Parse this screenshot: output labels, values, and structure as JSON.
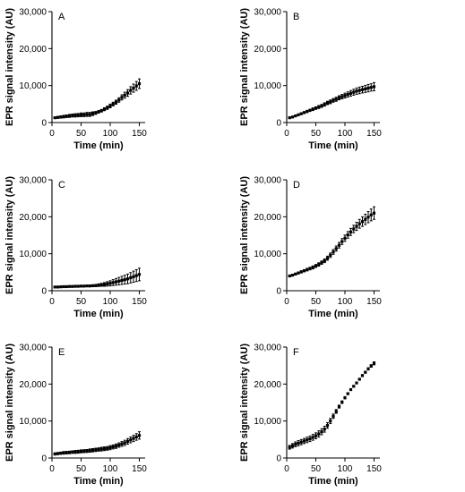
{
  "chart_data": [
    {
      "type": "scatter",
      "panel_label": "A",
      "xlabel": "Time (min)",
      "ylabel": "EPR signal intensity (AU)",
      "xlim": [
        0,
        160
      ],
      "ylim": [
        0,
        30000
      ],
      "xticks": [
        0,
        50,
        100,
        150
      ],
      "yticks": [
        0,
        10000,
        20000,
        30000
      ],
      "ytick_labels": [
        "0",
        "10,000",
        "20,000",
        "30,000"
      ],
      "x": [
        5,
        10,
        15,
        20,
        25,
        30,
        35,
        40,
        45,
        50,
        55,
        60,
        65,
        70,
        75,
        80,
        85,
        90,
        95,
        100,
        105,
        110,
        115,
        120,
        125,
        130,
        135,
        140,
        145,
        150
      ],
      "y": [
        1300,
        1400,
        1500,
        1600,
        1700,
        1800,
        1900,
        1950,
        2000,
        2100,
        2100,
        2200,
        2200,
        2400,
        2600,
        2900,
        3200,
        3600,
        4000,
        4500,
        5000,
        5500,
        6100,
        6800,
        7400,
        8000,
        8700,
        9300,
        9900,
        10500
      ],
      "error": [
        200,
        250,
        300,
        350,
        350,
        400,
        400,
        450,
        450,
        500,
        500,
        550,
        550,
        500,
        400,
        350,
        350,
        400,
        450,
        500,
        500,
        550,
        600,
        700,
        800,
        900,
        1000,
        1100,
        1200,
        1300
      ]
    },
    {
      "type": "scatter",
      "panel_label": "B",
      "xlabel": "Time (min)",
      "ylabel": "EPR signal intensity (AU)",
      "xlim": [
        0,
        160
      ],
      "ylim": [
        0,
        30000
      ],
      "xticks": [
        0,
        50,
        100,
        150
      ],
      "yticks": [
        0,
        10000,
        20000,
        30000
      ],
      "ytick_labels": [
        "0",
        "10,000",
        "20,000",
        "30,000"
      ],
      "x": [
        5,
        10,
        15,
        20,
        25,
        30,
        35,
        40,
        45,
        50,
        55,
        60,
        65,
        70,
        75,
        80,
        85,
        90,
        95,
        100,
        105,
        110,
        115,
        120,
        125,
        130,
        135,
        140,
        145,
        150
      ],
      "y": [
        1300,
        1500,
        1800,
        2100,
        2400,
        2700,
        3000,
        3300,
        3600,
        3900,
        4200,
        4500,
        4900,
        5300,
        5600,
        6000,
        6300,
        6700,
        7000,
        7300,
        7600,
        7900,
        8200,
        8500,
        8700,
        8900,
        9100,
        9300,
        9500,
        9700
      ],
      "error": [
        150,
        150,
        200,
        200,
        250,
        250,
        300,
        300,
        350,
        350,
        400,
        400,
        450,
        450,
        500,
        500,
        550,
        550,
        600,
        650,
        700,
        750,
        800,
        850,
        900,
        900,
        950,
        1000,
        1000,
        1100
      ]
    },
    {
      "type": "scatter",
      "panel_label": "C",
      "xlabel": "Time (min)",
      "ylabel": "EPR signal intensity (AU)",
      "xlim": [
        0,
        160
      ],
      "ylim": [
        0,
        30000
      ],
      "xticks": [
        0,
        50,
        100,
        150
      ],
      "yticks": [
        0,
        10000,
        20000,
        30000
      ],
      "ytick_labels": [
        "0",
        "10,000",
        "20,000",
        "30,000"
      ],
      "x": [
        5,
        10,
        15,
        20,
        25,
        30,
        35,
        40,
        45,
        50,
        55,
        60,
        65,
        70,
        75,
        80,
        85,
        90,
        95,
        100,
        105,
        110,
        115,
        120,
        125,
        130,
        135,
        140,
        145,
        150
      ],
      "y": [
        1000,
        1000,
        1050,
        1100,
        1100,
        1150,
        1150,
        1200,
        1200,
        1250,
        1250,
        1300,
        1300,
        1350,
        1400,
        1500,
        1600,
        1700,
        1850,
        2000,
        2200,
        2400,
        2600,
        2800,
        3000,
        3200,
        3500,
        3800,
        4100,
        4400
      ],
      "error": [
        150,
        150,
        150,
        150,
        150,
        150,
        150,
        150,
        200,
        200,
        200,
        200,
        250,
        250,
        300,
        350,
        400,
        500,
        600,
        700,
        800,
        900,
        1000,
        1100,
        1200,
        1300,
        1400,
        1500,
        1600,
        1700
      ]
    },
    {
      "type": "scatter",
      "panel_label": "D",
      "xlabel": "Time (min)",
      "ylabel": "EPR signal intensity (AU)",
      "xlim": [
        0,
        160
      ],
      "ylim": [
        0,
        30000
      ],
      "xticks": [
        0,
        50,
        100,
        150
      ],
      "yticks": [
        0,
        10000,
        20000,
        30000
      ],
      "ytick_labels": [
        "0",
        "10,000",
        "20,000",
        "30,000"
      ],
      "x": [
        5,
        10,
        15,
        20,
        25,
        30,
        35,
        40,
        45,
        50,
        55,
        60,
        65,
        70,
        75,
        80,
        85,
        90,
        95,
        100,
        105,
        110,
        115,
        120,
        125,
        130,
        135,
        140,
        145,
        150
      ],
      "y": [
        4000,
        4200,
        4500,
        4800,
        5100,
        5400,
        5700,
        6000,
        6300,
        6700,
        7100,
        7600,
        8100,
        8800,
        9600,
        10500,
        11400,
        12300,
        13300,
        14200,
        15100,
        15900,
        16700,
        17400,
        18100,
        18700,
        19300,
        19900,
        20500,
        21000
      ],
      "error": [
        200,
        200,
        250,
        250,
        300,
        300,
        350,
        350,
        400,
        400,
        450,
        450,
        500,
        550,
        600,
        650,
        700,
        750,
        800,
        850,
        900,
        950,
        1000,
        1100,
        1200,
        1300,
        1400,
        1500,
        1600,
        1700
      ]
    },
    {
      "type": "scatter",
      "panel_label": "E",
      "xlabel": "Time (min)",
      "ylabel": "EPR signal intensity (AU)",
      "xlim": [
        0,
        160
      ],
      "ylim": [
        0,
        30000
      ],
      "xticks": [
        0,
        50,
        100,
        150
      ],
      "yticks": [
        0,
        10000,
        20000,
        30000
      ],
      "ytick_labels": [
        "0",
        "10,000",
        "20,000",
        "30,000"
      ],
      "x": [
        5,
        10,
        15,
        20,
        25,
        30,
        35,
        40,
        45,
        50,
        55,
        60,
        65,
        70,
        75,
        80,
        85,
        90,
        95,
        100,
        105,
        110,
        115,
        120,
        125,
        130,
        135,
        140,
        145,
        150
      ],
      "y": [
        1100,
        1200,
        1300,
        1400,
        1450,
        1500,
        1600,
        1650,
        1700,
        1800,
        1850,
        1900,
        2000,
        2100,
        2200,
        2300,
        2400,
        2500,
        2600,
        2800,
        3000,
        3200,
        3500,
        3800,
        4100,
        4500,
        4900,
        5300,
        5700,
        6100
      ],
      "error": [
        300,
        300,
        300,
        350,
        350,
        350,
        350,
        400,
        400,
        400,
        400,
        400,
        450,
        450,
        450,
        450,
        500,
        500,
        500,
        550,
        550,
        600,
        600,
        650,
        700,
        750,
        800,
        850,
        900,
        1000
      ]
    },
    {
      "type": "scatter",
      "panel_label": "F",
      "xlabel": "Time (min)",
      "ylabel": "EPR signal intensity (AU)",
      "xlim": [
        0,
        160
      ],
      "ylim": [
        0,
        30000
      ],
      "xticks": [
        0,
        50,
        100,
        150
      ],
      "yticks": [
        0,
        10000,
        20000,
        30000
      ],
      "ytick_labels": [
        "0",
        "10,000",
        "20,000",
        "30,000"
      ],
      "x": [
        5,
        10,
        15,
        20,
        25,
        30,
        35,
        40,
        45,
        50,
        55,
        60,
        65,
        70,
        75,
        80,
        85,
        90,
        95,
        100,
        105,
        110,
        115,
        120,
        125,
        130,
        135,
        140,
        145,
        150
      ],
      "y": [
        2900,
        3300,
        3700,
        4000,
        4300,
        4600,
        4900,
        5200,
        5600,
        6000,
        6500,
        7100,
        7800,
        8800,
        10000,
        11300,
        12600,
        13900,
        15100,
        16300,
        17400,
        18500,
        19400,
        20300,
        21300,
        22300,
        23200,
        24100,
        24900,
        25600
      ],
      "error": [
        500,
        600,
        650,
        700,
        700,
        700,
        750,
        750,
        800,
        800,
        850,
        800,
        800,
        750,
        700,
        600,
        500,
        400,
        350,
        300,
        250,
        200,
        200,
        200,
        200,
        250,
        250,
        300,
        350,
        400
      ]
    }
  ]
}
